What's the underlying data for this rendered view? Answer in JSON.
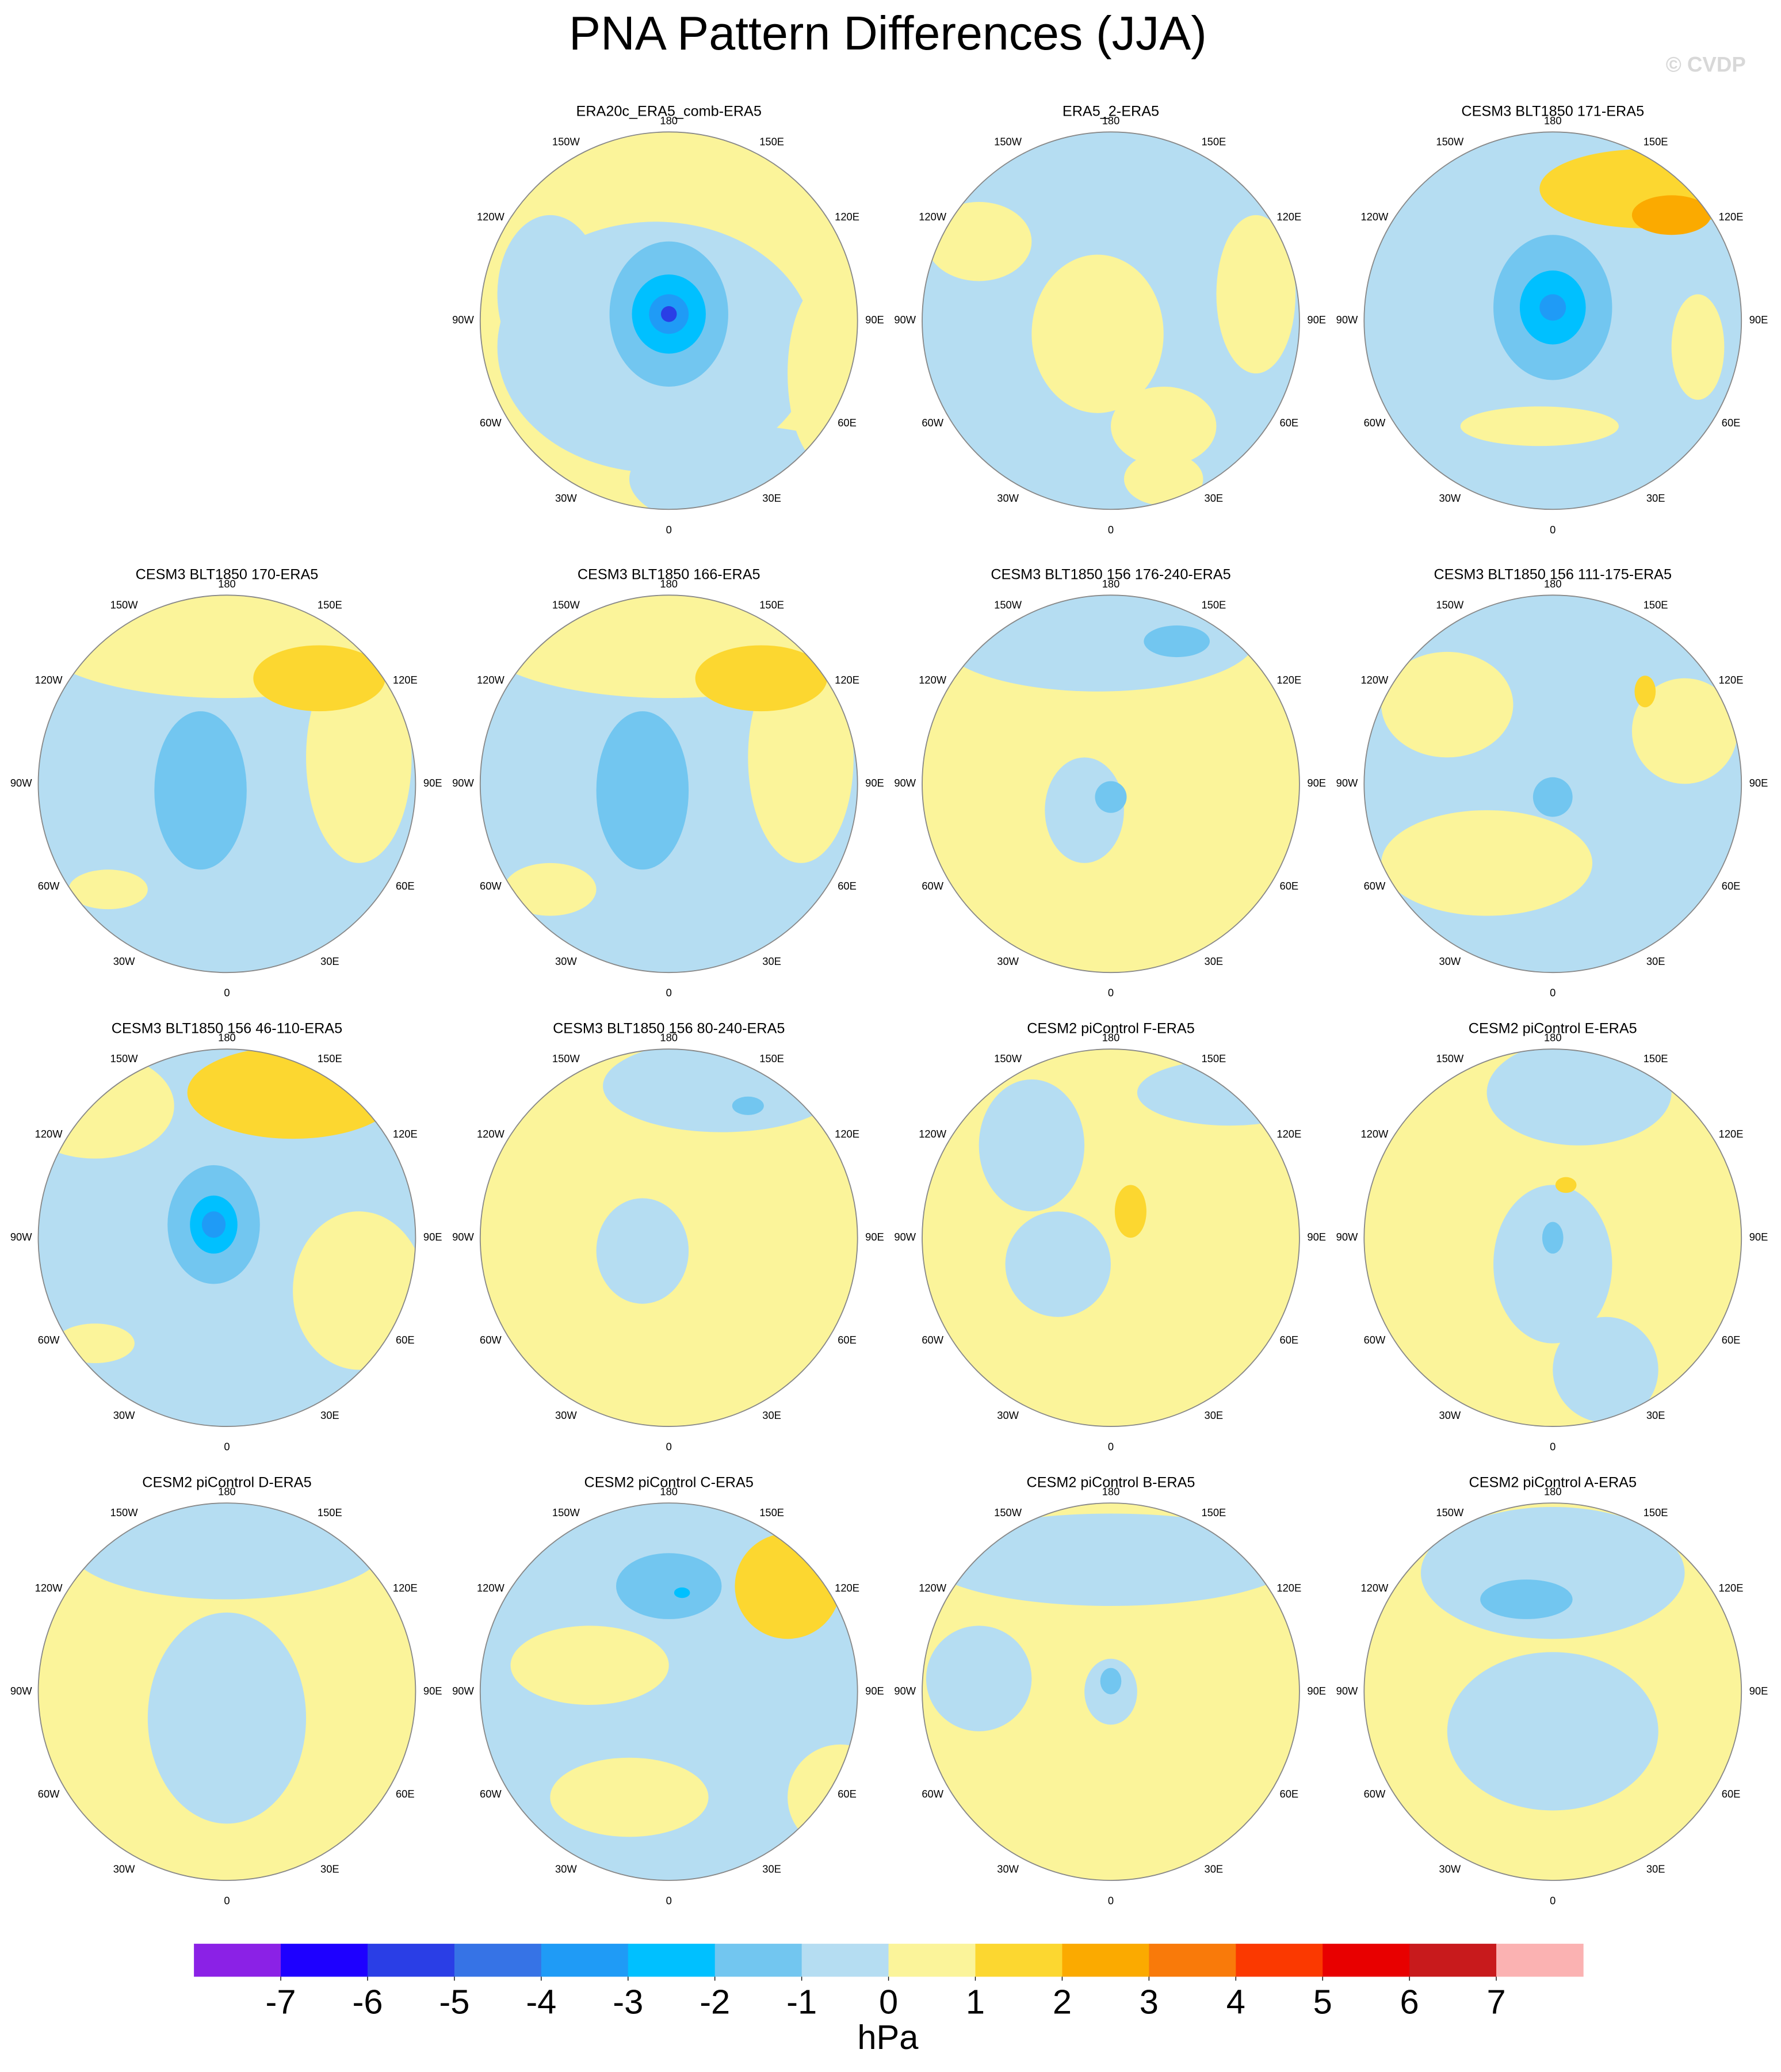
{
  "title": "PNA Pattern Differences (JJA)",
  "watermark": "© CVDP",
  "panels": [
    {
      "title": "ERA20c_ERA5_comb-ERA5"
    },
    {
      "title": "ERA5_2-ERA5"
    },
    {
      "title": "CESM3 BLT1850 171-ERA5"
    },
    {
      "title": "CESM3 BLT1850 170-ERA5"
    },
    {
      "title": "CESM3 BLT1850 166-ERA5"
    },
    {
      "title": "CESM3 BLT1850 156 176-240-ERA5"
    },
    {
      "title": "CESM3 BLT1850 156 111-175-ERA5"
    },
    {
      "title": "CESM3 BLT1850 156 46-110-ERA5"
    },
    {
      "title": "CESM3 BLT1850 156 80-240-ERA5"
    },
    {
      "title": "CESM2 piControl F-ERA5"
    },
    {
      "title": "CESM2 piControl E-ERA5"
    },
    {
      "title": "CESM2 piControl D-ERA5"
    },
    {
      "title": "CESM2 piControl C-ERA5"
    },
    {
      "title": "CESM2 piControl B-ERA5"
    },
    {
      "title": "CESM2 piControl A-ERA5"
    }
  ],
  "lon_labels": [
    "180",
    "150E",
    "120E",
    "90E",
    "60E",
    "30E",
    "0",
    "30W",
    "60W",
    "90W",
    "120W",
    "150W"
  ],
  "colorbar": {
    "levels": [
      -7,
      -6,
      -5,
      -4,
      -3,
      -2,
      -1,
      0,
      1,
      2,
      3,
      4,
      5,
      6,
      7
    ],
    "colors": [
      "#8b21e6",
      "#1e00ff",
      "#2a3ee6",
      "#3673e6",
      "#1f9bf6",
      "#00c0ff",
      "#72c6f0",
      "#b5ddf2",
      "#fbf49a",
      "#fcd730",
      "#fbaa00",
      "#f97a0a",
      "#fb3900",
      "#e80000",
      "#c81a1c",
      "#fbb2b2"
    ],
    "unit": "hPa"
  }
}
